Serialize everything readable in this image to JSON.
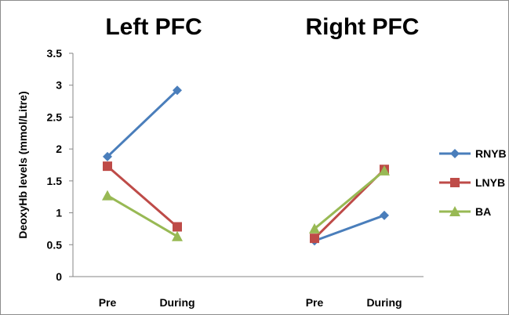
{
  "chart_data": {
    "type": "line",
    "ylabel": "DeoxyHb levels (mmol/Litre)",
    "ylim": [
      0,
      3.5
    ],
    "yticks": [
      "0",
      "0.5",
      "1",
      "1.5",
      "2",
      "2.5",
      "3",
      "3.5"
    ],
    "grid": false,
    "legend_position": "right",
    "panels": [
      {
        "title": "Left PFC",
        "categories": [
          "Pre",
          "During"
        ]
      },
      {
        "title": "Right PFC",
        "categories": [
          "Pre",
          "During"
        ]
      }
    ],
    "series": [
      {
        "name": "RNYB",
        "color": "#4a7ebb",
        "marker": "diamond",
        "left": [
          1.88,
          2.92
        ],
        "right": [
          0.56,
          0.96
        ]
      },
      {
        "name": "LNYB",
        "color": "#be4b48",
        "marker": "square",
        "left": [
          1.73,
          0.78
        ],
        "right": [
          0.6,
          1.68
        ]
      },
      {
        "name": "BA",
        "color": "#98b954",
        "marker": "triangle",
        "left": [
          1.27,
          0.63
        ],
        "right": [
          0.75,
          1.66
        ]
      }
    ]
  }
}
